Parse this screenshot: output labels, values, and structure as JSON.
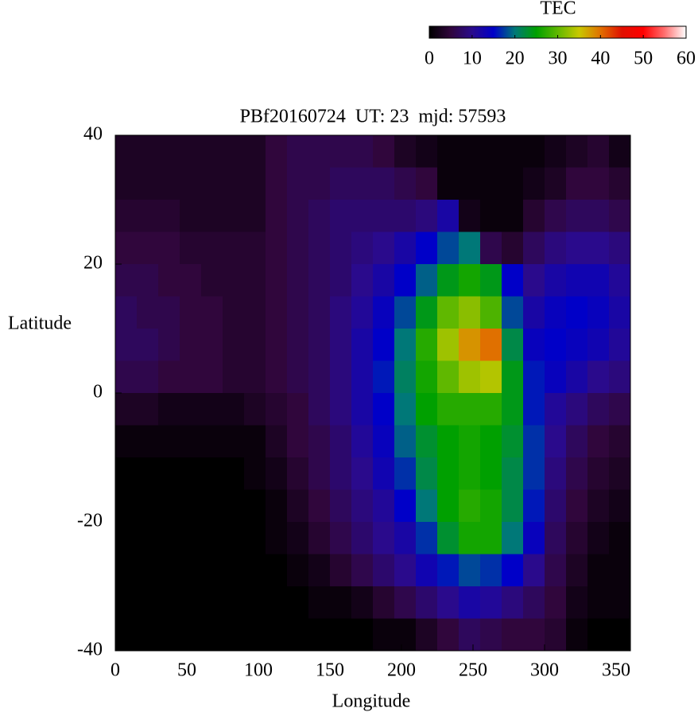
{
  "chart_data": {
    "type": "heatmap",
    "title": "PBf20160724  UT: 23  mjd: 57593",
    "xlabel": "Longitude",
    "ylabel": "Latitude",
    "xlim": [
      0,
      360
    ],
    "ylim": [
      -40,
      40
    ],
    "xticks": [
      0,
      50,
      100,
      150,
      200,
      250,
      300,
      350
    ],
    "yticks": [
      -40,
      -20,
      0,
      20,
      40
    ],
    "x": [
      7.5,
      22.5,
      37.5,
      52.5,
      67.5,
      82.5,
      97.5,
      112.5,
      127.5,
      142.5,
      157.5,
      172.5,
      187.5,
      202.5,
      217.5,
      232.5,
      247.5,
      262.5,
      277.5,
      292.5,
      307.5,
      322.5,
      337.5,
      352.5
    ],
    "y": [
      37.5,
      32.5,
      27.5,
      22.5,
      17.5,
      12.5,
      7.5,
      2.5,
      -2.5,
      -7.5,
      -12.5,
      -17.5,
      -22.5,
      -27.5,
      -32.5,
      -37.5
    ],
    "z": [
      [
        3,
        3,
        3,
        3,
        3,
        3,
        3,
        5,
        6,
        6,
        6,
        6,
        5,
        3,
        2,
        1,
        1,
        1,
        1,
        1,
        2,
        3,
        4,
        2
      ],
      [
        3,
        3,
        3,
        3,
        3,
        3,
        3,
        5,
        6,
        6,
        7,
        7,
        7,
        6,
        5,
        1,
        1,
        1,
        1,
        2,
        3,
        5,
        5,
        4
      ],
      [
        4,
        4,
        4,
        3,
        3,
        3,
        3,
        5,
        6,
        7,
        8,
        8,
        8,
        8,
        9,
        12,
        2,
        1,
        1,
        4,
        6,
        7,
        7,
        6
      ],
      [
        5,
        5,
        5,
        4,
        4,
        4,
        4,
        5,
        6,
        7,
        8,
        9,
        10,
        12,
        15,
        18,
        20,
        6,
        4,
        7,
        9,
        10,
        10,
        9
      ],
      [
        6,
        6,
        5,
        5,
        4,
        4,
        4,
        5,
        6,
        7,
        8,
        10,
        12,
        15,
        19,
        24,
        26,
        24,
        15,
        10,
        12,
        13,
        13,
        11
      ],
      [
        7,
        6,
        6,
        5,
        5,
        4,
        4,
        5,
        6,
        7,
        9,
        11,
        14,
        18,
        24,
        30,
        32,
        29,
        18,
        12,
        14,
        15,
        14,
        12
      ],
      [
        7,
        7,
        6,
        5,
        5,
        4,
        4,
        5,
        6,
        7,
        9,
        12,
        15,
        20,
        27,
        33,
        38,
        40,
        22,
        14,
        15,
        14,
        13,
        11
      ],
      [
        6,
        6,
        5,
        5,
        5,
        4,
        4,
        5,
        6,
        7,
        9,
        12,
        16,
        21,
        26,
        30,
        33,
        34,
        24,
        16,
        14,
        12,
        10,
        9
      ],
      [
        3,
        3,
        2,
        2,
        2,
        2,
        3,
        4,
        5,
        7,
        9,
        12,
        15,
        20,
        25,
        27,
        27,
        27,
        24,
        16,
        11,
        9,
        7,
        6
      ],
      [
        1,
        1,
        1,
        1,
        1,
        1,
        1,
        3,
        5,
        6,
        8,
        11,
        14,
        19,
        23,
        25,
        26,
        25,
        23,
        17,
        10,
        7,
        5,
        4
      ],
      [
        0,
        0,
        0,
        0,
        0,
        0,
        1,
        2,
        4,
        6,
        8,
        10,
        13,
        17,
        22,
        25,
        26,
        25,
        22,
        17,
        9,
        6,
        4,
        3
      ],
      [
        0,
        0,
        0,
        0,
        0,
        0,
        0,
        1,
        3,
        5,
        7,
        9,
        11,
        15,
        20,
        25,
        27,
        26,
        22,
        16,
        8,
        5,
        3,
        2
      ],
      [
        0,
        0,
        0,
        0,
        0,
        0,
        0,
        1,
        2,
        4,
        6,
        8,
        10,
        12,
        17,
        23,
        26,
        26,
        20,
        14,
        7,
        4,
        2,
        1
      ],
      [
        0,
        0,
        0,
        0,
        0,
        0,
        0,
        0,
        1,
        2,
        4,
        6,
        8,
        10,
        13,
        16,
        18,
        17,
        15,
        10,
        6,
        3,
        1,
        1
      ],
      [
        0,
        0,
        0,
        0,
        0,
        0,
        0,
        0,
        0,
        1,
        1,
        2,
        4,
        6,
        8,
        10,
        12,
        11,
        9,
        7,
        5,
        2,
        1,
        1
      ],
      [
        0,
        0,
        0,
        0,
        0,
        0,
        0,
        0,
        0,
        0,
        0,
        0,
        1,
        1,
        3,
        5,
        7,
        6,
        5,
        5,
        4,
        1,
        0,
        0
      ]
    ],
    "colorbar": {
      "title": "TEC",
      "lim": [
        0,
        60
      ],
      "ticks": [
        0,
        10,
        20,
        30,
        40,
        50,
        60
      ],
      "stops": [
        0,
        5,
        10,
        15,
        20,
        25,
        30,
        35,
        40,
        45,
        50,
        55,
        60
      ],
      "colors": [
        "#000000",
        "#30063c",
        "#2a0a8c",
        "#0000c8",
        "#007878",
        "#00a000",
        "#60b800",
        "#c8c800",
        "#e07000",
        "#e01000",
        "#ff0000",
        "#ff7070",
        "#ffffff"
      ]
    }
  }
}
